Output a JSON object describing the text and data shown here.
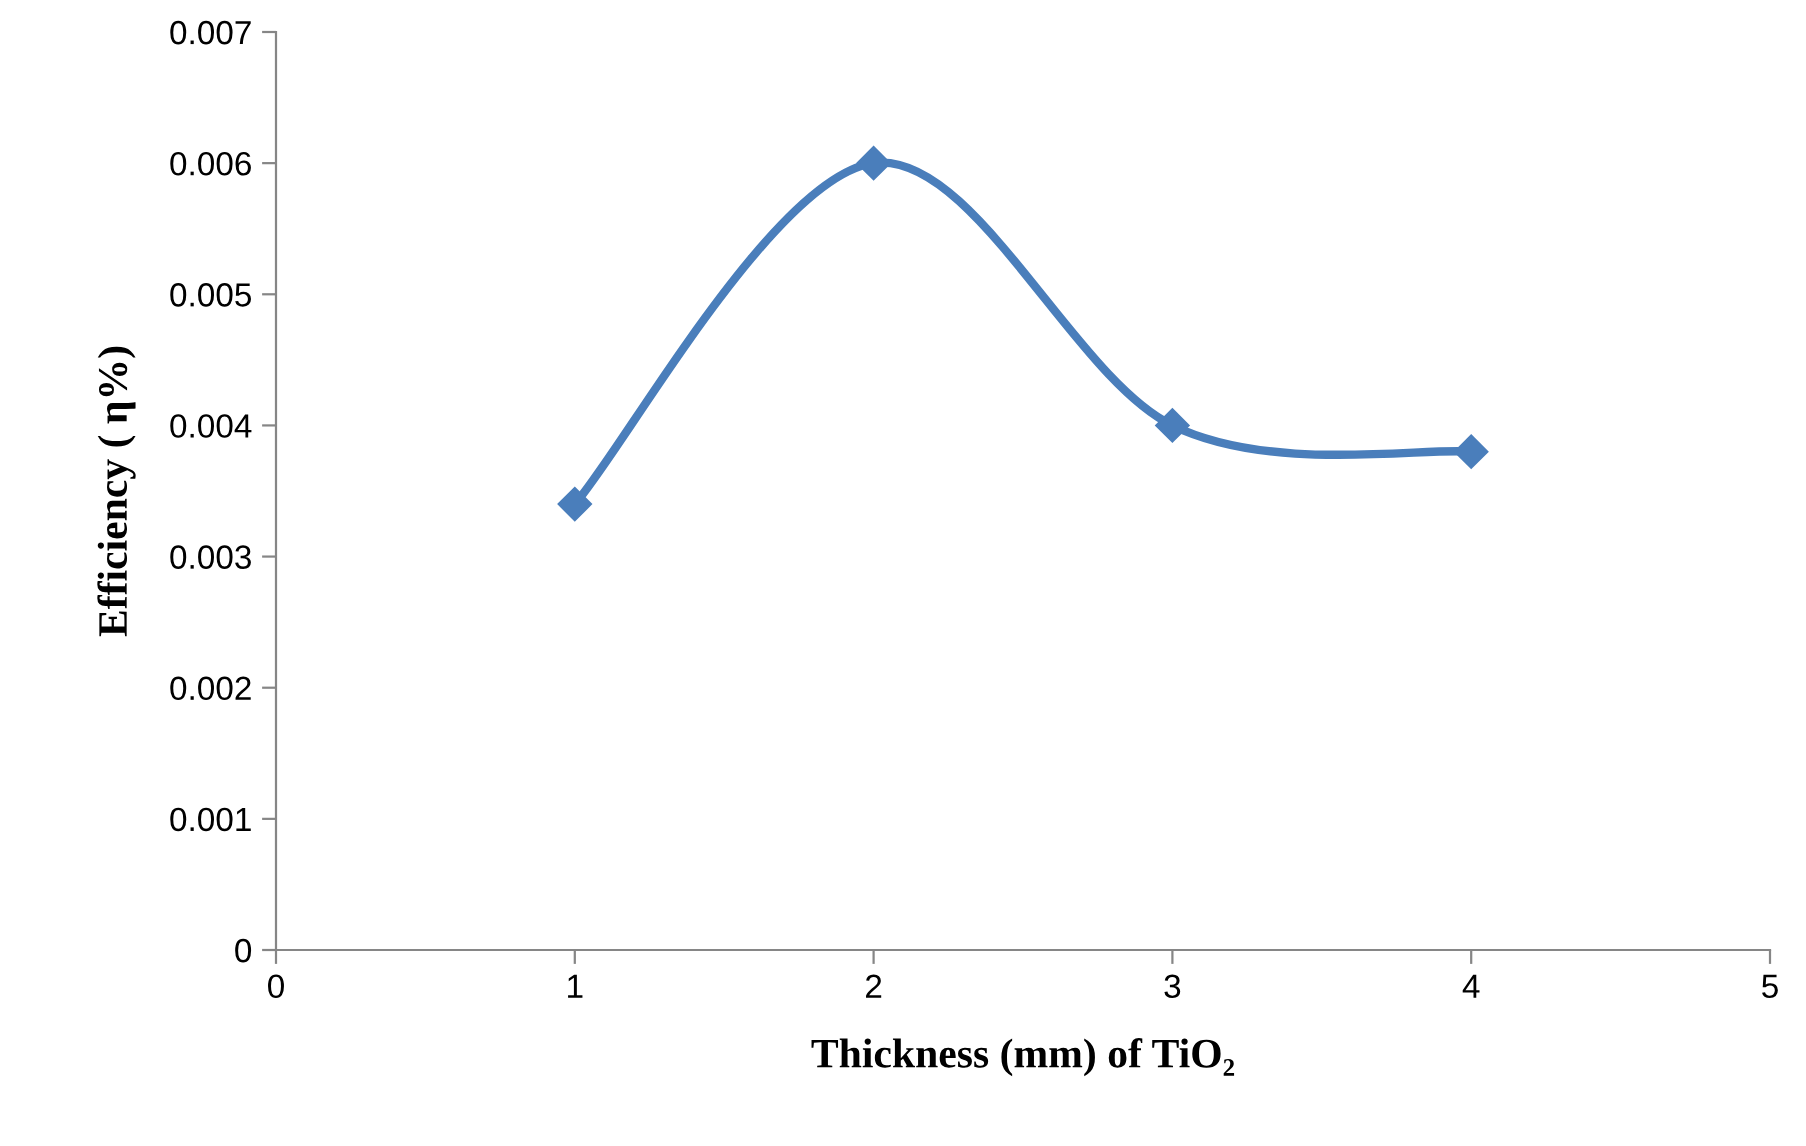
{
  "chart_data": {
    "type": "line",
    "xlabel": "Thickness (mm) of TiO₂",
    "ylabel": "Efficiency ( η%)",
    "x": [
      1,
      2,
      3,
      4
    ],
    "series": [
      {
        "color": "#4a7ebb",
        "values": [
          0.0034,
          0.006,
          0.004,
          0.0038
        ]
      }
    ],
    "xlim": [
      0,
      5
    ],
    "xticks": [
      0,
      1,
      2,
      3,
      4,
      5
    ],
    "ylim": [
      0,
      0.007
    ],
    "yticks": [
      0,
      0.001,
      0.002,
      0.003,
      0.004,
      0.005,
      0.006,
      0.007
    ],
    "grid": false,
    "legend": false,
    "marker": "diamond",
    "line_style": "solid"
  }
}
